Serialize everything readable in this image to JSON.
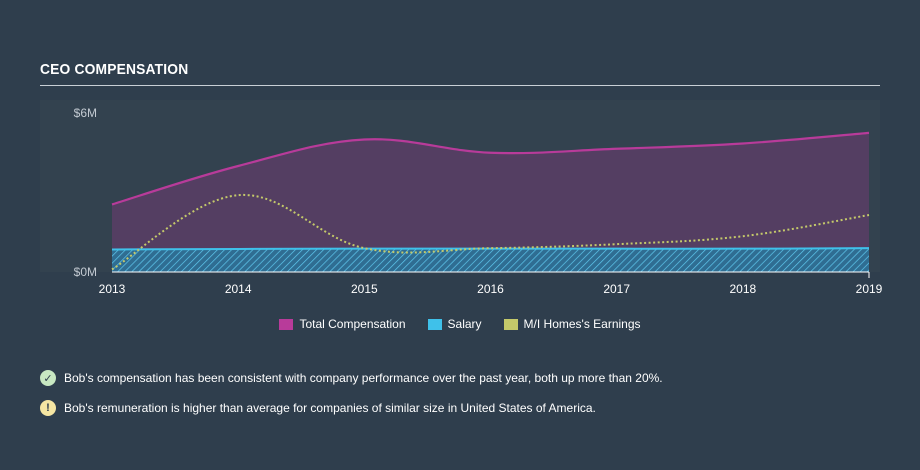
{
  "section_title": "CEO Compensation",
  "chart_data": {
    "type": "area",
    "x": [
      2013,
      2014,
      2015,
      2016,
      2017,
      2018,
      2019
    ],
    "xlim": [
      2013,
      2019.1
    ],
    "ylim": [
      0,
      6
    ],
    "y_ticks": [
      {
        "value": 6,
        "label": "$6M"
      },
      {
        "value": 0,
        "label": "$0M"
      }
    ],
    "x_tick_labels": [
      "2013",
      "2014",
      "2015",
      "2016",
      "2017",
      "2018",
      "2019"
    ],
    "series": [
      {
        "name": "Total Compensation",
        "color": "#b83b9a",
        "values": [
          2.55,
          4.0,
          5.0,
          4.5,
          4.65,
          4.85,
          5.25
        ]
      },
      {
        "name": "Salary",
        "color": "#3fc1ea",
        "values": [
          0.85,
          0.87,
          0.88,
          0.88,
          0.88,
          0.88,
          0.9
        ]
      },
      {
        "name": "M/I Homes's Earnings",
        "color": "#c4c96a",
        "values": [
          0.1,
          2.9,
          0.9,
          0.9,
          1.05,
          1.35,
          2.15
        ]
      }
    ],
    "legend_position": "bottom-center",
    "grid": false
  },
  "notes": [
    {
      "icon": "check-circle-icon",
      "text": "Bob's compensation has been consistent with company performance over the past year, both up more than 20%."
    },
    {
      "icon": "warning-circle-icon",
      "text": "Bob's remuneration is higher than average for companies of similar size in United States of America."
    }
  ]
}
